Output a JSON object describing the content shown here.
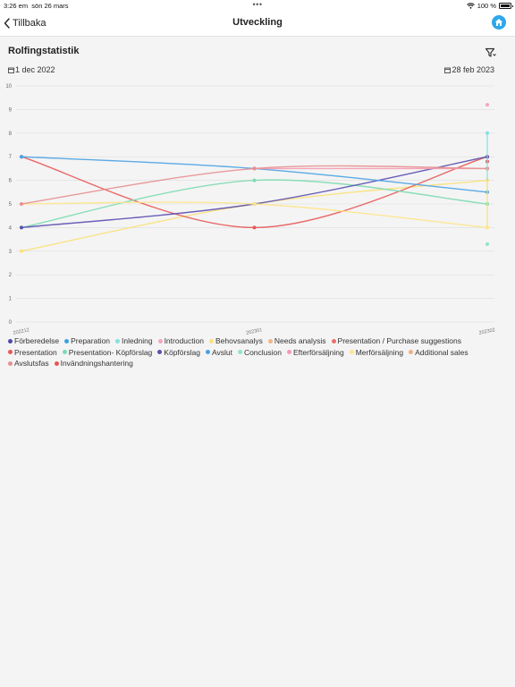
{
  "status_bar": {
    "time": "3:26 em",
    "date": "sön 26 mars",
    "dots": "•••",
    "battery": "100 %"
  },
  "nav": {
    "back_label": "Tillbaka",
    "title": "Utveckling",
    "home_icon": "home-icon"
  },
  "section": {
    "title": "Rolfingstatistik",
    "filter_icon": "filter-icon"
  },
  "dates": {
    "start": "1 dec 2022",
    "end": "28 feb 2023"
  },
  "chart_data": {
    "type": "line",
    "x": [
      "202212",
      "202301",
      "202302"
    ],
    "ylim": [
      0,
      10
    ],
    "yticks": [
      0,
      1,
      2,
      3,
      4,
      5,
      6,
      7,
      8,
      9,
      10
    ],
    "grid": true,
    "legend_position": "bottom",
    "series": [
      {
        "name": "Förberedelse",
        "color": "#4e4aa8",
        "values": [
          null,
          null,
          null
        ]
      },
      {
        "name": "Preparation",
        "color": "#3ba3e0",
        "values": [
          null,
          null,
          null
        ]
      },
      {
        "name": "Inledning",
        "color": "#86e0e0",
        "values": [
          null,
          null,
          8
        ]
      },
      {
        "name": "Introduction",
        "color": "#f3a6c6",
        "values": [
          null,
          null,
          9.2
        ]
      },
      {
        "name": "Behovsanalys",
        "color": "#fbe17a",
        "values": [
          3,
          5,
          6
        ]
      },
      {
        "name": "Needs analysis",
        "color": "#f2b48a",
        "values": [
          null,
          null,
          null
        ]
      },
      {
        "name": "Presentation / Purchase suggestions",
        "color": "#ee6e6e",
        "values": [
          null,
          null,
          null
        ]
      },
      {
        "name": "Presentation",
        "color": "#e95757",
        "values": [
          7,
          4,
          7
        ]
      },
      {
        "name": "Presentation- Köpförslag",
        "color": "#7ddbb1",
        "values": [
          4,
          6,
          5
        ]
      },
      {
        "name": "Köpförslag",
        "color": "#5a4fb0",
        "values": [
          4,
          5,
          7
        ]
      },
      {
        "name": "Avslut",
        "color": "#4aa2e3",
        "values": [
          7,
          6.5,
          5.5
        ]
      },
      {
        "name": "Conclusion",
        "color": "#8ee4ca",
        "values": [
          null,
          null,
          3.3
        ]
      },
      {
        "name": "Efterförsäljning",
        "color": "#f49ab0",
        "values": [
          null,
          6.5,
          6.5
        ]
      },
      {
        "name": "Merförsäljning",
        "color": "#fde68a",
        "values": [
          5,
          5,
          4
        ]
      },
      {
        "name": "Additional sales",
        "color": "#f0b080",
        "values": [
          null,
          null,
          6.5
        ]
      },
      {
        "name": "Avslutsfas",
        "color": "#e88f8f",
        "values": [
          5,
          6.5,
          6.5
        ]
      },
      {
        "name": "Invändningshantering",
        "color": "#e85656",
        "values": [
          null,
          null,
          6.8
        ]
      }
    ]
  }
}
